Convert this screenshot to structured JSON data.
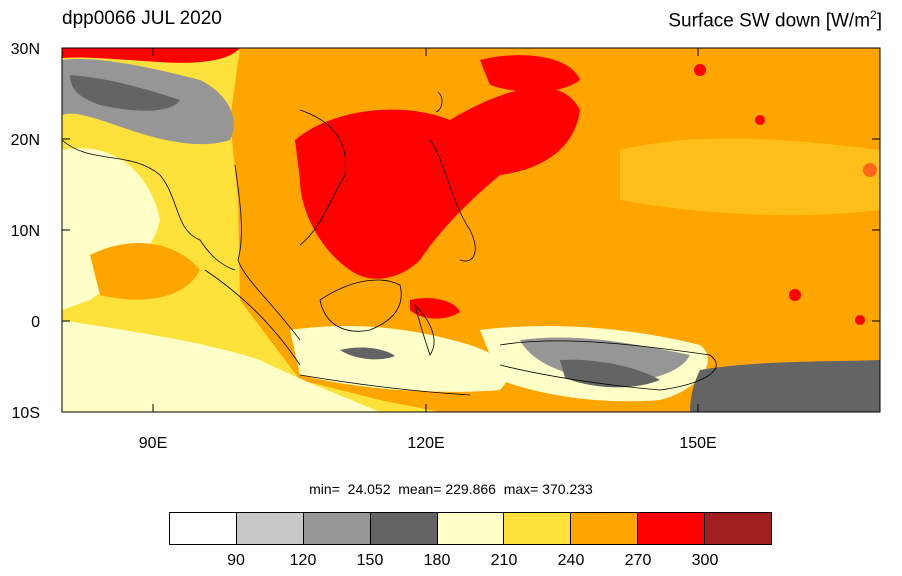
{
  "header": {
    "left_title": "dpp0066 JUL 2020",
    "right_title_main": "Surface SW down [W/m",
    "right_title_sup": "2",
    "right_title_end": "]"
  },
  "axes": {
    "lat_labels": [
      "30N",
      "20N",
      "10N",
      "0",
      "10S"
    ],
    "lon_labels": [
      "90E",
      "120E",
      "150E"
    ]
  },
  "stats": {
    "text": "min=  24.052  mean= 229.866  max= 370.233"
  },
  "colorbar": {
    "colors": [
      "#ffffff",
      "#c8c8c8",
      "#969696",
      "#646464",
      "#ffffc8",
      "#ffe13c",
      "#ffa500",
      "#ff0000",
      "#a01e1e"
    ],
    "labels": [
      "90",
      "120",
      "150",
      "180",
      "210",
      "240",
      "270",
      "300"
    ]
  },
  "chart_data": {
    "type": "heatmap",
    "title": "dpp0066 JUL 2020",
    "variable": "Surface SW down",
    "units": "W/m2",
    "lon_range": [
      80,
      170
    ],
    "lat_range": [
      -10,
      30
    ],
    "levels": [
      90,
      120,
      150,
      180,
      210,
      240,
      270,
      300
    ],
    "min": 24.052,
    "mean": 229.866,
    "max": 370.233
  }
}
